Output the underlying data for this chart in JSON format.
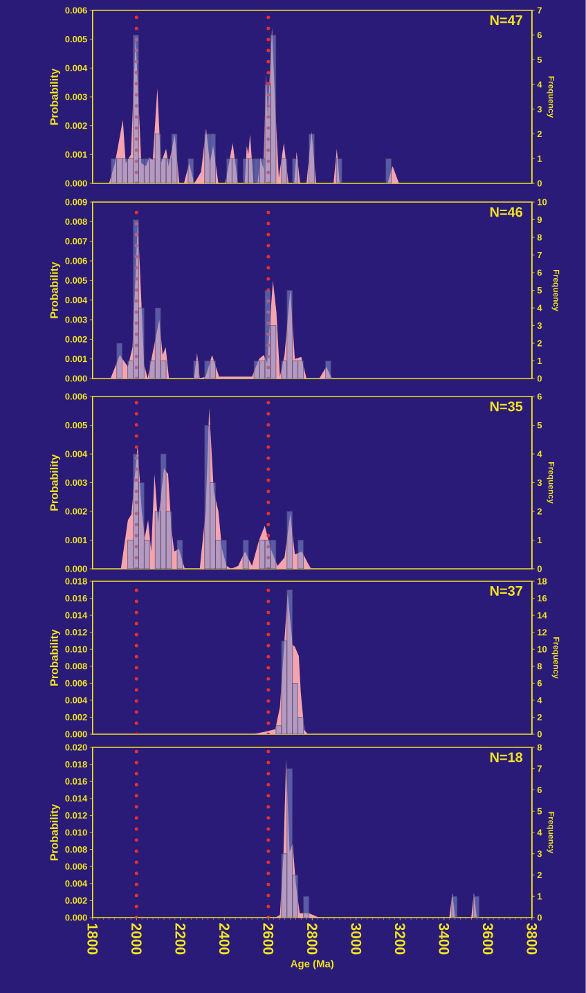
{
  "chart_data": [
    {
      "type": "histogram",
      "annotations": [
        "N=47"
      ],
      "ylabel": "Probability",
      "y2label": "Frequency",
      "xlim": [
        1800,
        3800
      ],
      "tick_labels": "y",
      "ylim": [
        0,
        0.006
      ],
      "yticks": [
        {
          "value": 0,
          "label": "0.000"
        },
        {
          "value": 0.001,
          "label": "0.001"
        },
        {
          "value": 0.002,
          "label": "0.002"
        },
        {
          "value": 0.003,
          "label": "0.003"
        },
        {
          "value": 0.004,
          "label": "0.004"
        },
        {
          "value": 0.005,
          "label": "0.005"
        },
        {
          "value": 0.006,
          "label": "0.006"
        }
      ],
      "y2lim": [
        0,
        7
      ],
      "y2ticks": [
        0,
        1,
        2,
        3,
        4,
        5,
        6,
        7
      ],
      "ref_lines": [
        {
          "axis": "x",
          "value": 2000,
          "color": "#e53030",
          "line_style": "dotted"
        },
        {
          "axis": "x",
          "value": 2600,
          "color": "#e53030",
          "line_style": "dotted"
        }
      ],
      "series": [
        {
          "type": "area",
          "color": "#f4a4ae",
          "x": [
            1875,
            1902,
            1938,
            1951,
            1975,
            1996,
            2022,
            2043,
            2059,
            2074,
            2095,
            2111,
            2135,
            2146,
            2174,
            2195,
            2216,
            2240,
            2263,
            2294,
            2317,
            2334,
            2349,
            2373,
            2404,
            2438,
            2462,
            2493,
            2502,
            2509,
            2517,
            2533,
            2551,
            2564,
            2578,
            2590,
            2598,
            2617,
            2631,
            2648,
            2671,
            2692,
            2718,
            2729,
            2745,
            2774,
            2797,
            2818,
            2897,
            2912,
            2925,
            3143,
            3166,
            3195
          ],
          "values": [
            0,
            0.0007,
            0.0022,
            0.0007,
            0.001,
            0.0051,
            0.0007,
            0.0006,
            0.0009,
            0.0008,
            0.0033,
            0.0007,
            0.0012,
            0.0006,
            0.0017,
            0,
            0,
            0.0007,
            0,
            0.0004,
            0.0019,
            0.0007,
            0.0013,
            0,
            0,
            0.0014,
            0,
            0,
            0.0013,
            0.001,
            0.0017,
            0,
            0,
            0.0009,
            0.0005,
            0.0038,
            0.0023,
            0.0054,
            0.0028,
            0.0002,
            0.0014,
            0,
            0,
            0.0011,
            0,
            0,
            0.0018,
            0,
            0,
            0.0012,
            0,
            0,
            0.0006,
            0
          ]
        },
        {
          "axis": "y2",
          "color": "#8090d0",
          "bins": [
            1885,
            1910,
            1935,
            1960,
            1985,
            2010,
            2035,
            2060,
            2085,
            2110,
            2135,
            2160,
            2185,
            2210,
            2235,
            2260,
            2285,
            2310,
            2335,
            2360,
            2385,
            2410,
            2435,
            2460,
            2485,
            2510,
            2535,
            2560,
            2585,
            2610,
            2635,
            2660,
            2685,
            2710,
            2735,
            2760,
            2785,
            2810,
            2835,
            2860,
            2885,
            2910,
            2935,
            2960,
            2985,
            3010,
            3035,
            3060,
            3085,
            3110,
            3135,
            3160
          ],
          "values": [
            1,
            1,
            1,
            1,
            6,
            1,
            1,
            1,
            2,
            1,
            1,
            2,
            0,
            0,
            1,
            0,
            0,
            2,
            2,
            0,
            0,
            1,
            1,
            0,
            1,
            1,
            1,
            1,
            4,
            6,
            0,
            1,
            0,
            1,
            0,
            0,
            2,
            0,
            0,
            0,
            0,
            1,
            0,
            0,
            0,
            0,
            0,
            0,
            0,
            0,
            1
          ]
        }
      ]
    },
    {
      "type": "histogram",
      "annotations": [
        "N=46"
      ],
      "ylabel": "Probability",
      "y2label": "Frequency",
      "xlim": [
        1800,
        3800
      ],
      "tick_labels": "y",
      "ylim": [
        0,
        0.009
      ],
      "yticks": [
        {
          "value": 0,
          "label": "0.000"
        },
        {
          "value": 0.001,
          "label": "0.001"
        },
        {
          "value": 0.002,
          "label": "0.002"
        },
        {
          "value": 0.003,
          "label": "0.003"
        },
        {
          "value": 0.004,
          "label": "0.004"
        },
        {
          "value": 0.005,
          "label": "0.005"
        },
        {
          "value": 0.006,
          "label": "0.006"
        },
        {
          "value": 0.007,
          "label": "0.007"
        },
        {
          "value": 0.008,
          "label": "0.008"
        },
        {
          "value": 0.009,
          "label": "0.009"
        }
      ],
      "y2lim": [
        0,
        10
      ],
      "y2ticks": [
        0,
        1,
        2,
        3,
        4,
        5,
        6,
        7,
        8,
        9,
        10
      ],
      "ref_lines": [
        {
          "axis": "x",
          "value": 2000,
          "color": "#e53030",
          "line_style": "dotted"
        },
        {
          "axis": "x",
          "value": 2600,
          "color": "#e53030",
          "line_style": "dotted"
        }
      ],
      "series": [
        {
          "type": "area",
          "color": "#f4a4ae",
          "x": [
            1882,
            1924,
            1961,
            1982,
            2006,
            2035,
            2051,
            2077,
            2104,
            2119,
            2133,
            2148,
            2262,
            2276,
            2288,
            2315,
            2344,
            2376,
            2526,
            2558,
            2579,
            2595,
            2621,
            2637,
            2653,
            2674,
            2700,
            2721,
            2750,
            2774,
            2832,
            2864,
            2890
          ],
          "values": [
            0,
            0.0012,
            0.0006,
            0.0016,
            0.008,
            0.0007,
            0,
            0.0015,
            0.003,
            0.0012,
            0.0016,
            0,
            0,
            0.0013,
            0,
            0.0001,
            0.0012,
            0.0001,
            0.0001,
            0.001,
            0.0012,
            0.0008,
            0.005,
            0.0034,
            0.0001,
            0.0012,
            0.0045,
            0.001,
            0.0011,
            0,
            0,
            0.0006,
            0
          ]
        },
        {
          "axis": "y2",
          "color": "#8090d0",
          "bins": [
            1885,
            1910,
            1935,
            1960,
            1985,
            2010,
            2035,
            2060,
            2085,
            2110,
            2135,
            2160,
            2185,
            2210,
            2235,
            2260,
            2285,
            2310,
            2335,
            2360,
            2385,
            2410,
            2435,
            2460,
            2485,
            2510,
            2535,
            2560,
            2585,
            2610,
            2635,
            2660,
            2685,
            2710,
            2735,
            2760,
            2785,
            2810,
            2835,
            2860,
            2885
          ],
          "values": [
            0,
            2,
            0,
            1,
            9,
            4,
            0,
            1,
            4,
            1,
            0,
            0,
            0,
            0,
            0,
            1,
            0,
            1,
            1,
            0,
            0,
            0,
            0,
            0,
            0,
            0,
            1,
            1,
            5,
            3,
            0,
            1,
            5,
            1,
            1,
            0,
            0,
            0,
            0,
            1
          ]
        }
      ]
    },
    {
      "type": "histogram",
      "annotations": [
        "N=35"
      ],
      "ylabel": "Probability",
      "y2label": "Frequency",
      "xlim": [
        1800,
        3800
      ],
      "tick_labels": "y",
      "ylim": [
        0,
        0.006
      ],
      "yticks": [
        {
          "value": 0,
          "label": "0.000"
        },
        {
          "value": 0.001,
          "label": "0.001"
        },
        {
          "value": 0.002,
          "label": "0.002"
        },
        {
          "value": 0.003,
          "label": "0.003"
        },
        {
          "value": 0.004,
          "label": "0.004"
        },
        {
          "value": 0.005,
          "label": "0.005"
        },
        {
          "value": 0.006,
          "label": "0.006"
        }
      ],
      "y2lim": [
        0,
        6
      ],
      "y2ticks": [
        0,
        1,
        2,
        3,
        4,
        5,
        6
      ],
      "ref_lines": [
        {
          "axis": "x",
          "value": 2000,
          "color": "#e53030",
          "line_style": "dotted"
        },
        {
          "axis": "x",
          "value": 2600,
          "color": "#e53030",
          "line_style": "dotted"
        }
      ],
      "series": [
        {
          "type": "area",
          "color": "#f4a4ae",
          "x": [
            1929,
            1961,
            1977,
            2005,
            2024,
            2038,
            2053,
            2067,
            2082,
            2098,
            2125,
            2144,
            2159,
            2172,
            2193,
            2220,
            2288,
            2315,
            2331,
            2352,
            2373,
            2389,
            2410,
            2431,
            2463,
            2494,
            2526,
            2558,
            2584,
            2611,
            2642,
            2674,
            2700,
            2721,
            2753,
            2780,
            2795
          ],
          "values": [
            0,
            0.0017,
            0.0019,
            0.0043,
            0.002,
            0.0011,
            0.0017,
            0.0006,
            0.0033,
            0.0016,
            0.0035,
            0.0033,
            0.0014,
            0.0006,
            0.0007,
            0,
            0,
            0.002,
            0.0056,
            0.0027,
            0.002,
            0.0007,
            0.0001,
            0,
            0.0001,
            0.0006,
            0.0001,
            0.001,
            0.0015,
            0.0007,
            0.0001,
            0.0004,
            0.0019,
            0.0005,
            0.0006,
            0.0002,
            0
          ]
        },
        {
          "axis": "y2",
          "color": "#8090d0",
          "bins": [
            1960,
            1985,
            2010,
            2035,
            2060,
            2085,
            2110,
            2135,
            2160,
            2185,
            2210,
            2235,
            2260,
            2285,
            2310,
            2335,
            2360,
            2385,
            2410,
            2435,
            2460,
            2485,
            2510,
            2535,
            2560,
            2585,
            2610,
            2635,
            2660,
            2685,
            2710,
            2735,
            2760
          ],
          "values": [
            1,
            4,
            3,
            1,
            0,
            2,
            4,
            2,
            0,
            1,
            0,
            0,
            0,
            0,
            5,
            3,
            1,
            1,
            0,
            0,
            0,
            1,
            0,
            0,
            1,
            1,
            1,
            0,
            0,
            2,
            0,
            1
          ]
        }
      ]
    },
    {
      "type": "histogram",
      "annotations": [
        "N=37"
      ],
      "ylabel": "Probability",
      "y2label": "Frequency",
      "xlim": [
        1800,
        3800
      ],
      "tick_labels": "y",
      "ylim": [
        0,
        0.018
      ],
      "yticks": [
        {
          "value": 0,
          "label": "0.000"
        },
        {
          "value": 0.002,
          "label": "0.002"
        },
        {
          "value": 0.004,
          "label": "0.004"
        },
        {
          "value": 0.006,
          "label": "0.006"
        },
        {
          "value": 0.008,
          "label": "0.008"
        },
        {
          "value": 0.01,
          "label": "0.010"
        },
        {
          "value": 0.012,
          "label": "0.012"
        },
        {
          "value": 0.014,
          "label": "0.014"
        },
        {
          "value": 0.016,
          "label": "0.016"
        },
        {
          "value": 0.018,
          "label": "0.018"
        }
      ],
      "y2lim": [
        0,
        18
      ],
      "y2ticks": [
        0,
        2,
        4,
        6,
        8,
        10,
        12,
        14,
        16,
        18
      ],
      "ref_lines": [
        {
          "axis": "x",
          "value": 2000,
          "color": "#e53030",
          "line_style": "dotted"
        },
        {
          "axis": "x",
          "value": 2600,
          "color": "#e53030",
          "line_style": "dotted"
        }
      ],
      "series": [
        {
          "type": "area",
          "color": "#f4a4ae",
          "x": [
            2526,
            2589,
            2632,
            2653,
            2688,
            2711,
            2721,
            2739,
            2748,
            2764,
            2780
          ],
          "values": [
            0,
            0.0003,
            0.0006,
            0.0032,
            0.0166,
            0.0105,
            0.0103,
            0.0092,
            0.0049,
            0.0005,
            0
          ]
        },
        {
          "axis": "y2",
          "color": "#8090d0",
          "bins": [
            2635,
            2660,
            2685,
            2710,
            2735,
            2760
          ],
          "values": [
            1,
            11,
            17,
            6,
            2
          ]
        }
      ]
    },
    {
      "type": "histogram",
      "annotations": [
        "N=18"
      ],
      "ylabel": "Probability",
      "y2label": "Frequency",
      "xlabel": "Age (Ma)",
      "xlim": [
        1800,
        3800
      ],
      "xticks": [
        1800,
        2000,
        2200,
        2400,
        2600,
        2800,
        3000,
        3200,
        3400,
        3600,
        3800
      ],
      "ylim": [
        0,
        0.02
      ],
      "yticks": [
        {
          "value": 0,
          "label": "0.000"
        },
        {
          "value": 0.002,
          "label": "0.002"
        },
        {
          "value": 0.004,
          "label": "0.004"
        },
        {
          "value": 0.006,
          "label": "0.006"
        },
        {
          "value": 0.008,
          "label": "0.008"
        },
        {
          "value": 0.01,
          "label": "0.010"
        },
        {
          "value": 0.012,
          "label": "0.012"
        },
        {
          "value": 0.014,
          "label": "0.014"
        },
        {
          "value": 0.016,
          "label": "0.016"
        },
        {
          "value": 0.018,
          "label": "0.018"
        },
        {
          "value": 0.02,
          "label": "0.020"
        }
      ],
      "y2lim": [
        0,
        8
      ],
      "y2ticks": [
        0,
        1,
        2,
        3,
        4,
        5,
        6,
        7,
        8
      ],
      "ref_lines": [
        {
          "axis": "x",
          "value": 2000,
          "color": "#e53030",
          "line_style": "dotted"
        },
        {
          "axis": "x",
          "value": 2600,
          "color": "#e53030",
          "line_style": "dotted"
        }
      ],
      "series": [
        {
          "type": "area",
          "color": "#f4a4ae",
          "x": [
            2632,
            2653,
            2669,
            2681,
            2697,
            2711,
            2725,
            2743,
            2785,
            2832,
            3424,
            3438,
            3450,
            3524,
            3536,
            3549
          ],
          "values": [
            0,
            0.0003,
            0.0074,
            0.0186,
            0.0077,
            0.0087,
            0.0041,
            0.0005,
            0.0005,
            0,
            0,
            0.0029,
            0,
            0,
            0.0029,
            0
          ]
        },
        {
          "axis": "y2",
          "color": "#8090d0",
          "bins": [
            2660,
            2685,
            2710,
            2735,
            2760,
            2785,
            2810,
            2835,
            2860,
            2885,
            2910,
            2935,
            2960,
            2985,
            3010,
            3035,
            3060,
            3085,
            3110,
            3135,
            3160,
            3185,
            3210,
            3235,
            3260,
            3285,
            3310,
            3335,
            3360,
            3385,
            3410,
            3435,
            3460,
            3485,
            3510,
            3535,
            3560
          ],
          "values": [
            3,
            7,
            2,
            0,
            1,
            0,
            0,
            0,
            0,
            0,
            0,
            0,
            0,
            0,
            0,
            0,
            0,
            0,
            0,
            0,
            0,
            0,
            0,
            0,
            0,
            0,
            0,
            0,
            0,
            0,
            0,
            1,
            0,
            0,
            0,
            1
          ]
        }
      ]
    }
  ]
}
